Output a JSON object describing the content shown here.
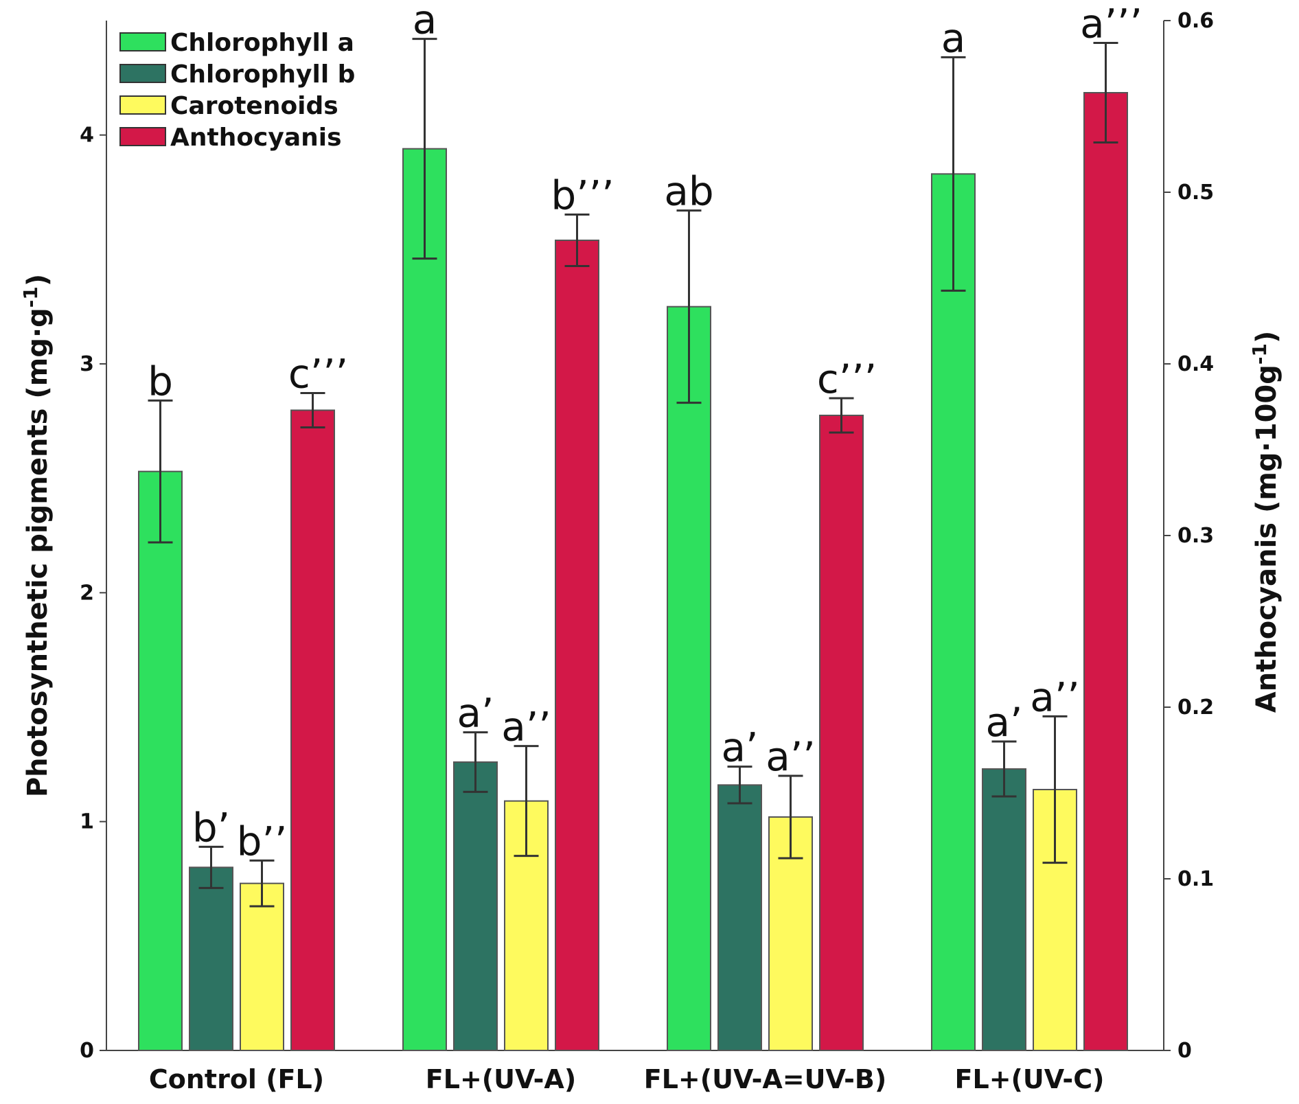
{
  "chart_data": {
    "type": "bar",
    "categories": [
      "Control (FL)",
      "FL+(UV-A)",
      "FL+(UV-A=UV-B)",
      "FL+(UV-C)"
    ],
    "series": [
      {
        "name": "Chlorophyll a",
        "axis": "left",
        "color": "#2ee05e",
        "values": [
          2.53,
          3.94,
          3.25,
          3.83
        ],
        "errors": [
          0.31,
          0.48,
          0.42,
          0.51
        ],
        "labels": [
          "b",
          "a",
          "ab",
          "a"
        ]
      },
      {
        "name": "Chlorophyll b",
        "axis": "left",
        "color": "#2d7362",
        "values": [
          0.8,
          1.26,
          1.16,
          1.23
        ],
        "errors": [
          0.09,
          0.13,
          0.08,
          0.12
        ],
        "labels": [
          "b’",
          "a’",
          "a’",
          "a’"
        ]
      },
      {
        "name": "Carotenoids",
        "axis": "left",
        "color": "#fefa5e",
        "values": [
          0.73,
          1.09,
          1.02,
          1.14
        ],
        "errors": [
          0.1,
          0.24,
          0.18,
          0.32
        ],
        "labels": [
          "b’’",
          "a’’",
          "a’’",
          "a’’"
        ]
      },
      {
        "name": "Anthocyanis",
        "axis": "right",
        "color": "#d31848",
        "values": [
          0.373,
          0.472,
          0.37,
          0.558
        ],
        "errors": [
          0.01,
          0.015,
          0.01,
          0.029
        ],
        "labels": [
          "c’’’",
          "b’’’",
          "c’’’",
          "a’’’"
        ]
      }
    ],
    "y_left": {
      "label": "Photosynthetic pigments (mg·g",
      "label_sup": "-1",
      "label_end": ")",
      "ylim": [
        0,
        4.5
      ],
      "ticks": [
        0,
        1,
        2,
        3,
        4
      ],
      "tick_labels": [
        "0",
        "1",
        "2",
        "3",
        "4"
      ]
    },
    "y_right": {
      "label": "Anthocyanis (mg·100g",
      "label_sup": "-1",
      "label_end": ")",
      "ylim": [
        0,
        0.6
      ],
      "ticks": [
        0,
        0.1,
        0.2,
        0.3,
        0.4,
        0.5,
        0.6
      ],
      "tick_labels": [
        "0",
        "0.1",
        "0.2",
        "0.3",
        "0.4",
        "0.5",
        "0.6"
      ]
    },
    "legend": {
      "position": "top-left",
      "entries": [
        "Chlorophyll a",
        "Chlorophyll b",
        "Carotenoids",
        "Anthocyanis"
      ]
    },
    "grid": false
  }
}
